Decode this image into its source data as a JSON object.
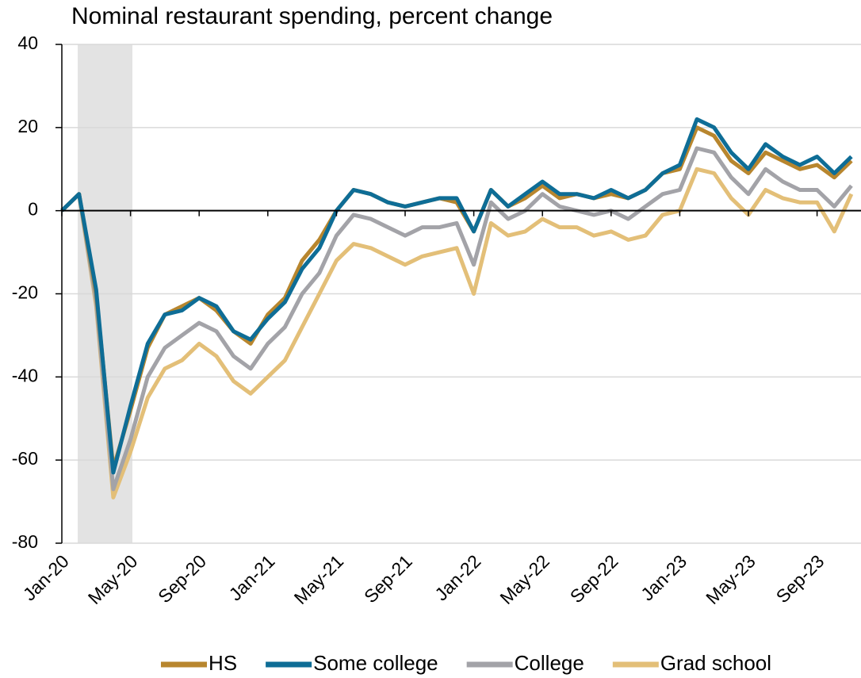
{
  "chart_data": {
    "type": "line",
    "title": "Nominal restaurant spending, percent change",
    "categories": [
      "Jan-20",
      null,
      null,
      null,
      "May-20",
      null,
      null,
      null,
      "Sep-20",
      null,
      null,
      null,
      "Jan-21",
      null,
      null,
      null,
      "May-21",
      null,
      null,
      null,
      "Sep-21",
      null,
      null,
      null,
      "Jan-22",
      null,
      null,
      null,
      "May-22",
      null,
      null,
      null,
      "Sep-22",
      null,
      null,
      null,
      "Jan-23",
      null,
      null,
      null,
      "May-23",
      null,
      null,
      null,
      "Sep-23",
      null,
      null
    ],
    "series": [
      {
        "name": "HS",
        "color": "#b8862e",
        "values": [
          0,
          4,
          -20,
          -62,
          -48,
          -33,
          -25,
          -23,
          -21,
          -24,
          -29,
          -32,
          -25,
          -21,
          -12,
          -7,
          0,
          5,
          4,
          2,
          1,
          2,
          3,
          2,
          -5,
          5,
          1,
          3,
          6,
          3,
          4,
          3,
          4,
          3,
          5,
          9,
          10,
          20,
          18,
          12,
          9,
          14,
          12,
          10,
          11,
          8,
          12
        ]
      },
      {
        "name": "Some college",
        "color": "#0e6d96",
        "values": [
          0,
          4,
          -19,
          -63,
          -47,
          -32,
          -25,
          -24,
          -21,
          -23,
          -29,
          -31,
          -26,
          -22,
          -14,
          -9,
          0,
          5,
          4,
          2,
          1,
          2,
          3,
          3,
          -5,
          5,
          1,
          4,
          7,
          4,
          4,
          3,
          5,
          3,
          5,
          9,
          11,
          22,
          20,
          14,
          10,
          16,
          13,
          11,
          13,
          9,
          13
        ]
      },
      {
        "name": "College",
        "color": "#a3a3a8",
        "values": [
          0,
          4,
          -22,
          -67,
          -55,
          -40,
          -33,
          -30,
          -27,
          -29,
          -35,
          -38,
          -32,
          -28,
          -20,
          -15,
          -6,
          -1,
          -2,
          -4,
          -6,
          -4,
          -4,
          -3,
          -13,
          2,
          -2,
          0,
          4,
          1,
          0,
          -1,
          0,
          -2,
          1,
          4,
          5,
          15,
          14,
          8,
          4,
          10,
          7,
          5,
          5,
          1,
          6
        ]
      },
      {
        "name": "Grad school",
        "color": "#e3bf78",
        "values": [
          0,
          4,
          -23,
          -69,
          -58,
          -45,
          -38,
          -36,
          -32,
          -35,
          -41,
          -44,
          -40,
          -36,
          -28,
          -20,
          -12,
          -8,
          -9,
          -11,
          -13,
          -11,
          -10,
          -9,
          -20,
          -3,
          -6,
          -5,
          -2,
          -4,
          -4,
          -6,
          -5,
          -7,
          -6,
          -1,
          0,
          10,
          9,
          3,
          -1,
          5,
          3,
          2,
          2,
          -5,
          4
        ]
      }
    ],
    "ylim": [
      -80,
      40
    ],
    "yticks": [
      -80,
      -60,
      -40,
      -20,
      0,
      20,
      40
    ],
    "grid": true,
    "legend": "bottom"
  }
}
